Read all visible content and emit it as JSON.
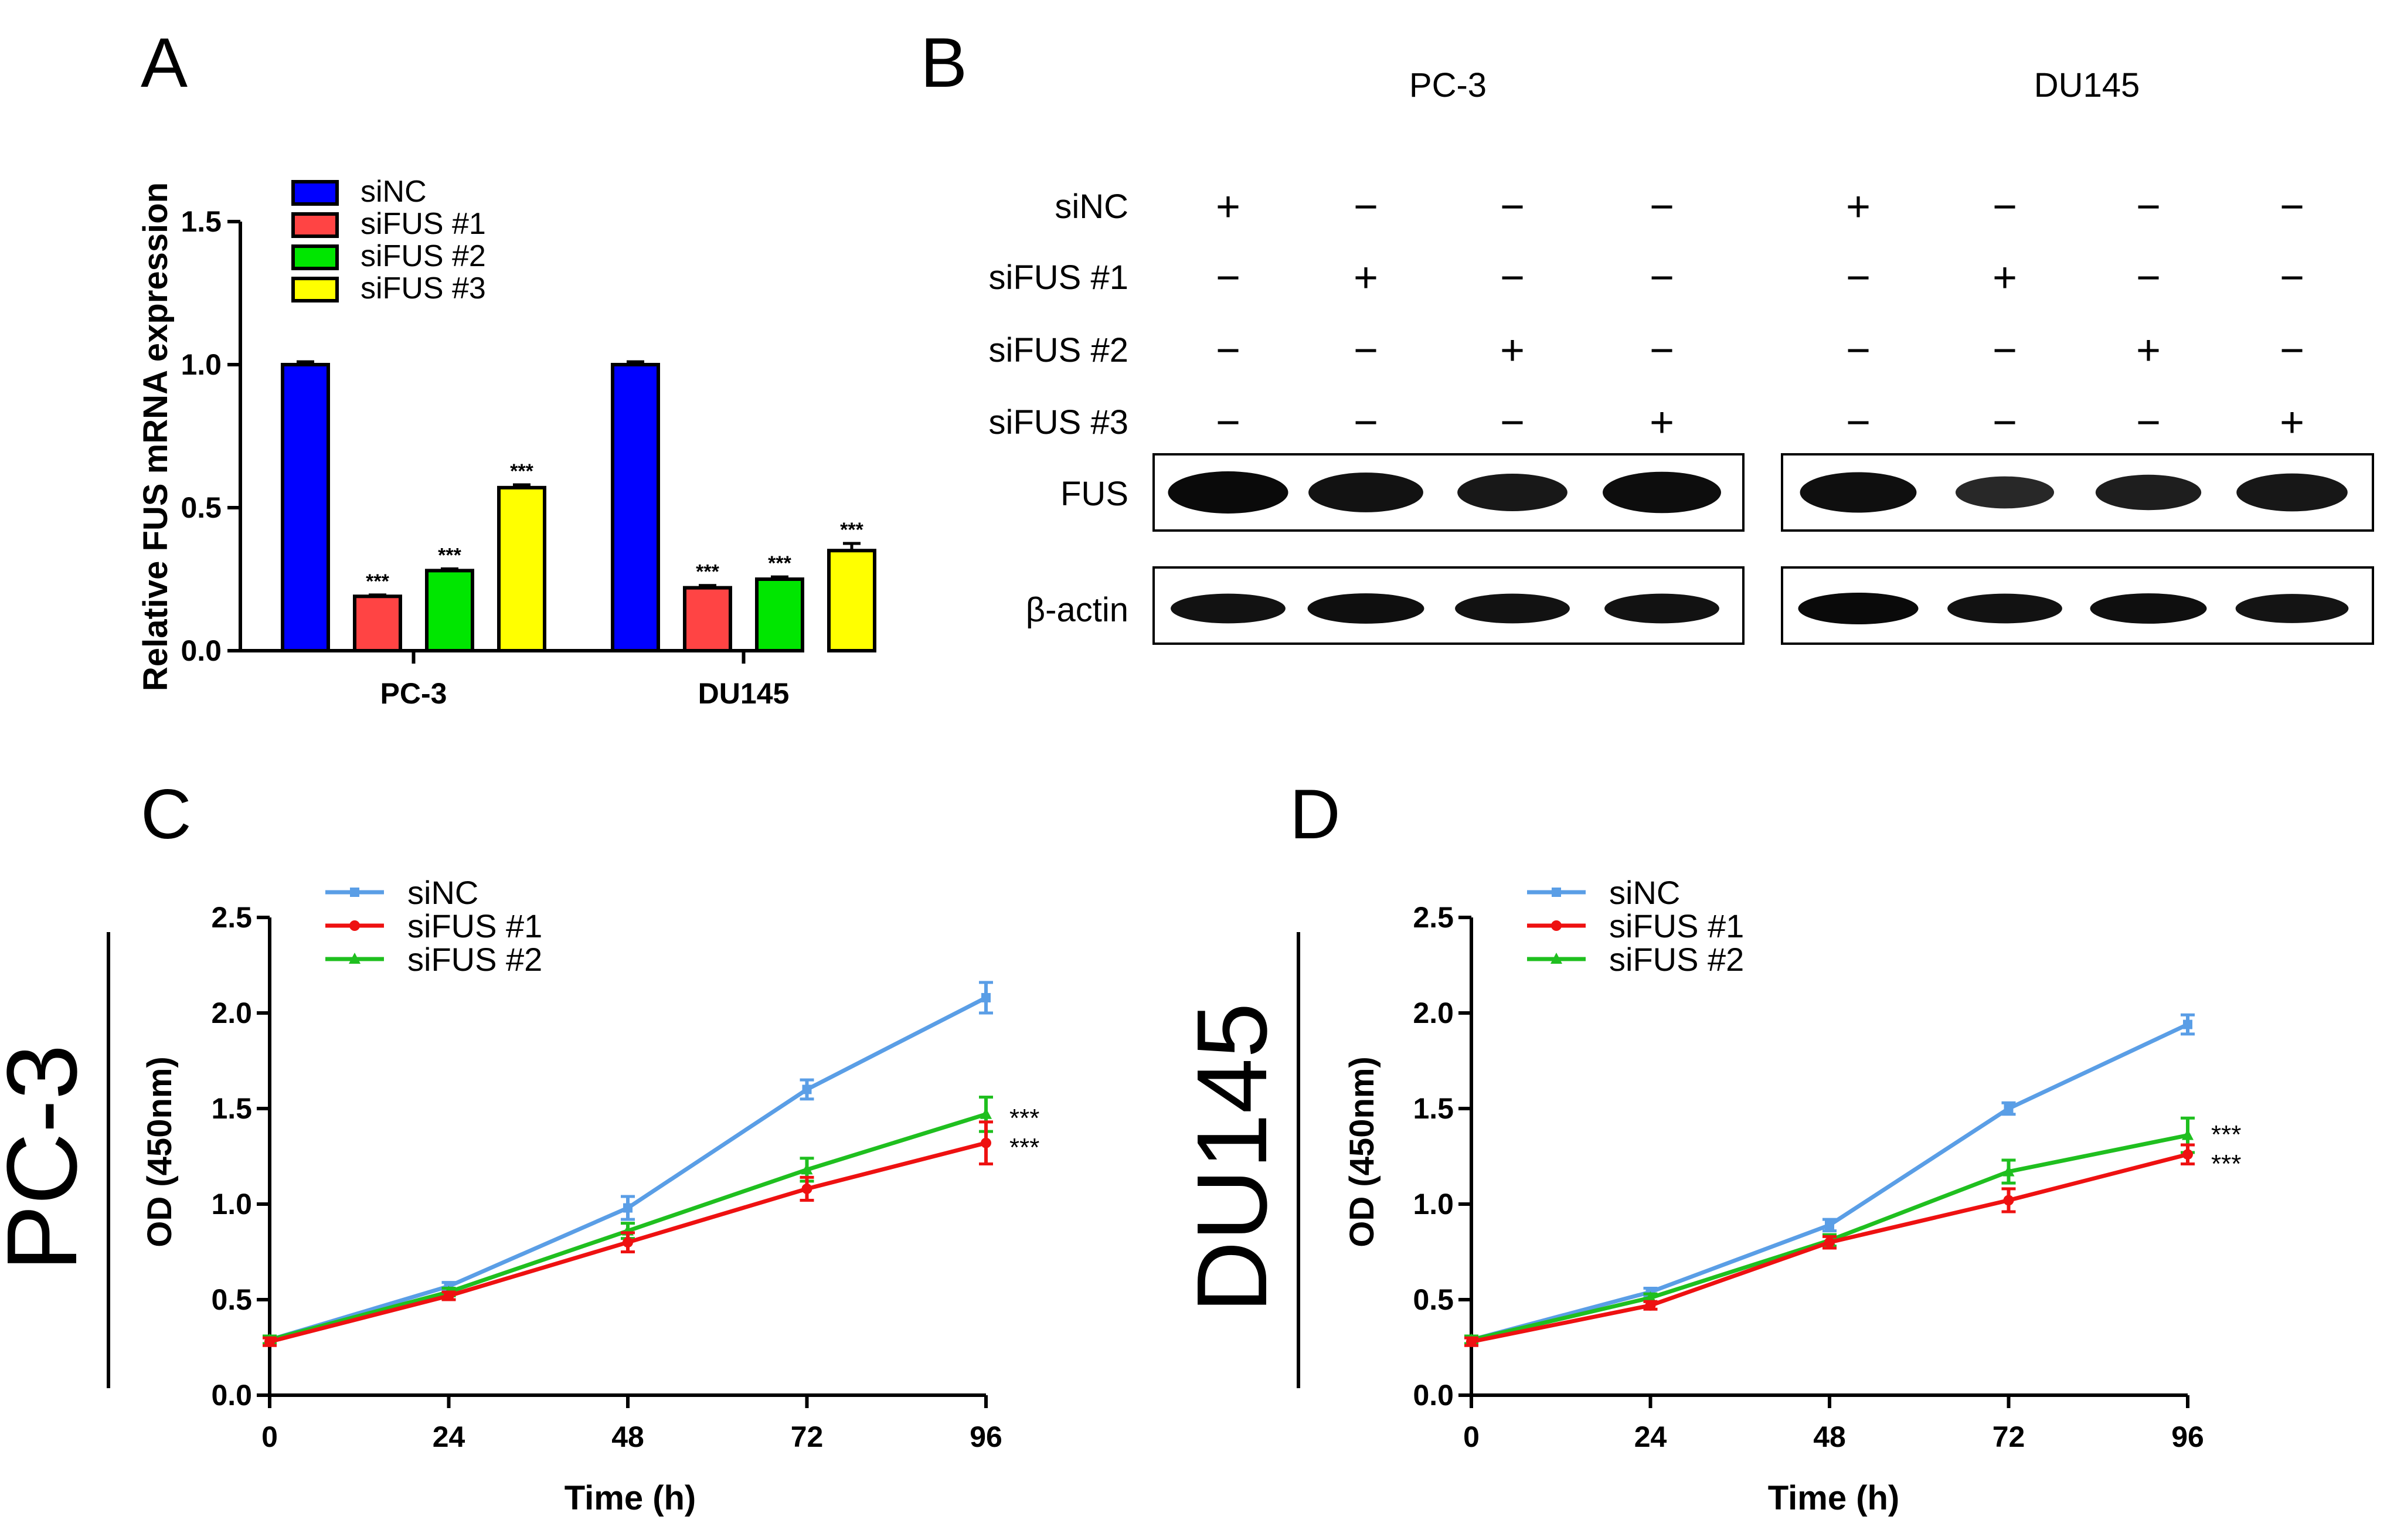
{
  "panels": {
    "A": "A",
    "B": "B",
    "C": "C",
    "D": "D"
  },
  "colors": {
    "siNC_bar": "#0000ff",
    "siFUS1_bar": "#ff4444",
    "siFUS2_bar": "#00e600",
    "siFUS3_bar": "#ffff00",
    "siNC_line": "#5a9ee6",
    "siFUS1_line": "#ee1111",
    "siFUS2_line": "#1fbf1f"
  },
  "chart_data": [
    {
      "type": "bar",
      "ylabel": "Relative FUS mRNA expression",
      "xlabel": "",
      "ylim": [
        0,
        1.5
      ],
      "yticks": [
        "0.0",
        "0.5",
        "1.0",
        "1.5"
      ],
      "categories": [
        "PC-3",
        "DU145"
      ],
      "legend_position": "top-left",
      "series": [
        {
          "name": "siNC",
          "values": [
            1.0,
            1.0
          ],
          "errors": [
            0.01,
            0.01
          ],
          "stars": [
            "",
            ""
          ]
        },
        {
          "name": "siFUS #1",
          "values": [
            0.19,
            0.22
          ],
          "errors": [
            0.005,
            0.008
          ],
          "stars": [
            "***",
            "***"
          ]
        },
        {
          "name": "siFUS #2",
          "values": [
            0.28,
            0.25
          ],
          "errors": [
            0.006,
            0.008
          ],
          "stars": [
            "***",
            "***"
          ]
        },
        {
          "name": "siFUS #3",
          "values": [
            0.57,
            0.35
          ],
          "errors": [
            0.01,
            0.025
          ],
          "stars": [
            "***",
            "***"
          ]
        }
      ]
    },
    {
      "type": "line",
      "row_label": "PC-3",
      "xlabel": "Time (h)",
      "ylabel": "OD (450nm)",
      "x": [
        0,
        24,
        48,
        72,
        96
      ],
      "xlim": [
        0,
        96
      ],
      "ylim": [
        0,
        2.5
      ],
      "yticks": [
        "0.0",
        "0.5",
        "1.0",
        "1.5",
        "2.0",
        "2.5"
      ],
      "xticks": [
        "0",
        "24",
        "48",
        "72",
        "96"
      ],
      "legend_position": "top-left",
      "series": [
        {
          "name": "siNC",
          "values": [
            0.29,
            0.57,
            0.98,
            1.6,
            2.08
          ],
          "errors": [
            0.02,
            0.02,
            0.06,
            0.05,
            0.08
          ],
          "stars": ""
        },
        {
          "name": "siFUS #1",
          "values": [
            0.28,
            0.52,
            0.8,
            1.08,
            1.32
          ],
          "errors": [
            0.02,
            0.02,
            0.05,
            0.06,
            0.11
          ],
          "stars": "***"
        },
        {
          "name": "siFUS #2",
          "values": [
            0.29,
            0.54,
            0.86,
            1.18,
            1.47
          ],
          "errors": [
            0.02,
            0.02,
            0.04,
            0.06,
            0.09
          ],
          "stars": "***"
        }
      ]
    },
    {
      "type": "line",
      "row_label": "DU145",
      "xlabel": "Time (h)",
      "ylabel": "OD (450nm)",
      "x": [
        0,
        24,
        48,
        72,
        96
      ],
      "xlim": [
        0,
        96
      ],
      "ylim": [
        0,
        2.5
      ],
      "yticks": [
        "0.0",
        "0.5",
        "1.0",
        "1.5",
        "2.0",
        "2.5"
      ],
      "xticks": [
        "0",
        "24",
        "48",
        "72",
        "96"
      ],
      "legend_position": "top-left",
      "series": [
        {
          "name": "siNC",
          "values": [
            0.29,
            0.54,
            0.89,
            1.5,
            1.94
          ],
          "errors": [
            0.02,
            0.02,
            0.03,
            0.03,
            0.05
          ],
          "stars": ""
        },
        {
          "name": "siFUS #1",
          "values": [
            0.28,
            0.47,
            0.8,
            1.02,
            1.26
          ],
          "errors": [
            0.02,
            0.02,
            0.03,
            0.06,
            0.05
          ],
          "stars": "***"
        },
        {
          "name": "siFUS #2",
          "values": [
            0.29,
            0.51,
            0.81,
            1.17,
            1.36
          ],
          "errors": [
            0.02,
            0.02,
            0.03,
            0.06,
            0.09
          ],
          "stars": "***"
        }
      ]
    }
  ],
  "western_blot": {
    "cell_lines": [
      "PC-3",
      "DU145"
    ],
    "conditions": [
      "siNC",
      "siFUS #1",
      "siFUS #2",
      "siFUS #3"
    ],
    "signs": [
      [
        "+",
        "−",
        "−",
        "−",
        "+",
        "−",
        "−",
        "−"
      ],
      [
        "−",
        "+",
        "−",
        "−",
        "−",
        "+",
        "−",
        "−"
      ],
      [
        "−",
        "−",
        "+",
        "−",
        "−",
        "−",
        "+",
        "−"
      ],
      [
        "−",
        "−",
        "−",
        "+",
        "−",
        "−",
        "−",
        "+"
      ]
    ],
    "proteins": [
      "FUS",
      "β-actin"
    ],
    "band_intensity": {
      "FUS": [
        1.0,
        0.85,
        0.72,
        0.95,
        0.9,
        0.4,
        0.6,
        0.75
      ],
      "β-actin": [
        0.85,
        0.9,
        0.85,
        0.85,
        1.0,
        0.85,
        0.9,
        0.8
      ]
    }
  }
}
